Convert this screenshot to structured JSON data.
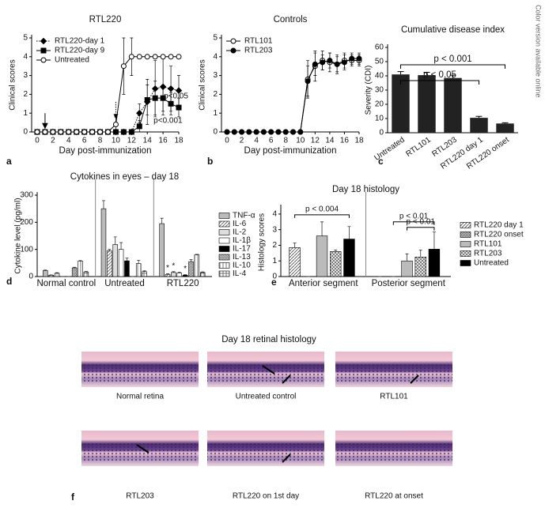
{
  "side_note": "Color version available online",
  "chart_data": [
    {
      "type": "line",
      "panel": "a",
      "title": "RTL220",
      "x_label": "Day post-immunization",
      "y_label": "Clinical scores",
      "x": [
        0,
        1,
        2,
        3,
        4,
        5,
        6,
        7,
        8,
        9,
        10,
        11,
        12,
        13,
        14,
        15,
        16,
        17,
        18
      ],
      "xlim": [
        0,
        18
      ],
      "xticks": [
        0,
        2,
        4,
        6,
        8,
        10,
        12,
        14,
        16,
        18
      ],
      "ylim": [
        0,
        5
      ],
      "yticks": [
        0,
        1,
        2,
        3,
        4,
        5
      ],
      "legend": "upper left",
      "series": [
        {
          "name": "RTL220-day 1",
          "color": "#000000",
          "marker": "diamond",
          "line": "dotted",
          "values": [
            0,
            0,
            0,
            0,
            0,
            0,
            0,
            0,
            0,
            0,
            0,
            0,
            0,
            1.0,
            1.6,
            2.3,
            2.4,
            2.3,
            2.2
          ],
          "errors": [
            null,
            null,
            null,
            null,
            null,
            null,
            null,
            null,
            null,
            null,
            null,
            null,
            null,
            0.5,
            1.2,
            1.5,
            1.5,
            1.2,
            0.8
          ]
        },
        {
          "name": "RTL220-day 9",
          "color": "#000000",
          "marker": "square",
          "line": "solid",
          "values": [
            0,
            0,
            0,
            0,
            0,
            0,
            0,
            0,
            0,
            0,
            0,
            0,
            0,
            0.3,
            1.7,
            1.8,
            1.8,
            1.5,
            1.3
          ],
          "errors": [
            null,
            null,
            null,
            null,
            null,
            null,
            null,
            null,
            null,
            null,
            null,
            null,
            null,
            0.3,
            0.8,
            0.9,
            0.7,
            0.6,
            0.5
          ]
        },
        {
          "name": "Untreated",
          "color": "#000000",
          "marker": "open-circle",
          "line": "solid",
          "values": [
            0,
            0,
            0,
            0,
            0,
            0,
            0,
            0,
            0,
            0,
            0.4,
            3.5,
            4,
            4,
            4,
            4,
            4,
            4,
            4
          ],
          "errors": [
            null,
            null,
            null,
            null,
            null,
            null,
            null,
            null,
            null,
            null,
            0.4,
            1.5,
            1.0,
            null,
            null,
            null,
            null,
            null,
            null
          ]
        }
      ],
      "annotations": [
        "p<0.05",
        "p<0.001"
      ]
    },
    {
      "type": "line",
      "panel": "b",
      "title": "Controls",
      "x_label": "Day post-immunization",
      "y_label": "Clinical scores",
      "x": [
        0,
        1,
        2,
        3,
        4,
        5,
        6,
        7,
        8,
        9,
        10,
        11,
        12,
        13,
        14,
        15,
        16,
        17,
        18
      ],
      "xlim": [
        0,
        18
      ],
      "xticks": [
        0,
        2,
        4,
        6,
        8,
        10,
        12,
        14,
        16,
        18
      ],
      "ylim": [
        0,
        5
      ],
      "yticks": [
        0,
        1,
        2,
        3,
        4,
        5
      ],
      "legend": "upper left",
      "series": [
        {
          "name": "RTL101",
          "color": "#000000",
          "marker": "open-circle",
          "line": "solid",
          "values": [
            0,
            0,
            0,
            0,
            0,
            0,
            0,
            0,
            0,
            0,
            0,
            2.8,
            3.5,
            3.8,
            3.7,
            3.6,
            3.8,
            3.8,
            3.8
          ],
          "errors": [
            null,
            null,
            null,
            null,
            null,
            null,
            null,
            null,
            null,
            null,
            null,
            1.0,
            0.8,
            0.5,
            0.5,
            0.4,
            0.4,
            0.3,
            0.3
          ]
        },
        {
          "name": "RTL203",
          "color": "#000000",
          "marker": "circle",
          "line": "solid",
          "values": [
            0,
            0,
            0,
            0,
            0,
            0,
            0,
            0,
            0,
            0,
            0,
            2.7,
            3.6,
            3.7,
            3.8,
            3.6,
            3.7,
            3.9,
            3.9
          ],
          "errors": [
            null,
            null,
            null,
            null,
            null,
            null,
            null,
            null,
            null,
            null,
            null,
            0.8,
            0.6,
            0.4,
            0.4,
            0.5,
            0.4,
            0.3,
            0.3
          ]
        }
      ]
    },
    {
      "type": "bar",
      "panel": "c",
      "title": "Cumulative disease index",
      "y_label": "Severity (CDI)",
      "categories": [
        "Untreated",
        "RTL101",
        "RTL203",
        "RTL220 day 1",
        "RTL220 onset"
      ],
      "values": [
        41,
        40.5,
        38.5,
        10.5,
        6.5
      ],
      "errors": [
        2,
        2,
        2,
        1,
        0.5
      ],
      "color": "#222222",
      "ylim": [
        0,
        60
      ],
      "yticks": [
        0,
        10,
        20,
        30,
        40,
        50,
        60
      ],
      "brackets": [
        {
          "text": "p < 0.001",
          "from": "Untreated",
          "to": "RTL220 onset"
        },
        {
          "text": "p < 0.05",
          "from": "Untreated",
          "to": "RTL220 day 1"
        }
      ]
    },
    {
      "type": "grouped_bar",
      "panel": "d",
      "title": "Cytokines in eyes – day 18",
      "y_label": "Cytokine level (pg/ml)",
      "categories": [
        "Normal control",
        "Untreated",
        "RTL220"
      ],
      "ylim": [
        0,
        300
      ],
      "yticks": [
        0,
        100,
        200,
        300
      ],
      "legend": "right",
      "series": [
        {
          "name": "TNF-α",
          "color": "#bbbbbb",
          "pattern": "solid",
          "values": [
            22,
            250,
            195
          ],
          "errors": [
            2,
            30,
            20
          ]
        },
        {
          "name": "IL-6",
          "color": "#555555",
          "pattern": "hatch",
          "values": [
            5,
            95,
            8
          ],
          "errors": [
            1,
            5,
            2
          ]
        },
        {
          "name": "IL-2",
          "color": "#dddddd",
          "pattern": "solid",
          "values": [
            12,
            118,
            15
          ],
          "errors": [
            2,
            28,
            3
          ]
        },
        {
          "name": "IL-1β",
          "color": "#ffffff",
          "pattern": "solid",
          "values": [
            0,
            100,
            13
          ],
          "errors": [
            0,
            25,
            3
          ]
        },
        {
          "name": "IL-17",
          "color": "#000000",
          "pattern": "solid",
          "values": [
            0,
            58,
            5
          ],
          "errors": [
            0,
            10,
            2
          ]
        },
        {
          "name": "IL-13",
          "color": "#555555",
          "pattern": "hatch-dense",
          "values": [
            32,
            0,
            55
          ],
          "errors": [
            2,
            0,
            8
          ]
        },
        {
          "name": "IL-10",
          "color": "#555555",
          "pattern": "vlines",
          "values": [
            57,
            48,
            80
          ],
          "errors": [
            2,
            12,
            2
          ]
        },
        {
          "name": "IL-4",
          "color": "#555555",
          "pattern": "grid",
          "values": [
            17,
            18,
            15
          ],
          "errors": [
            2,
            3,
            2
          ]
        }
      ],
      "annotations": [
        "*",
        "*",
        "*"
      ]
    },
    {
      "type": "grouped_bar",
      "panel": "e",
      "title": "Day 18 histology",
      "y_label": "Histology scores",
      "categories": [
        "Anterior segment",
        "Posterior segment"
      ],
      "ylim": [
        0,
        4.4
      ],
      "yticks": [
        0,
        1,
        2,
        3,
        4
      ],
      "legend": "right",
      "series": [
        {
          "name": "RTL220 day 1",
          "color": "#444444",
          "pattern": "hatch",
          "values": [
            1.85,
            0
          ],
          "errors": [
            0.3,
            0
          ]
        },
        {
          "name": "RTL220 onset",
          "color": "#444444",
          "pattern": "hatch-dense",
          "values": [
            0,
            0
          ],
          "errors": [
            0,
            0
          ]
        },
        {
          "name": "RTL101",
          "color": "#bbbbbb",
          "pattern": "solid",
          "values": [
            2.6,
            1.0
          ],
          "errors": [
            0.9,
            0.45
          ]
        },
        {
          "name": "RTL203",
          "color": "#666666",
          "pattern": "cross",
          "values": [
            1.6,
            1.25
          ],
          "errors": [
            0.1,
            0.45
          ]
        },
        {
          "name": "Untreated",
          "color": "#000000",
          "pattern": "solid",
          "values": [
            2.4,
            1.75
          ],
          "errors": [
            0.8,
            1.1
          ]
        }
      ],
      "brackets": [
        {
          "text": "p < 0.004",
          "group": "Anterior segment",
          "from": "RTL220 day 1",
          "to": "Untreated"
        },
        {
          "text": "p < 0.01",
          "group": "Posterior segment",
          "from": "RTL220 onset",
          "to": "Untreated"
        },
        {
          "text": "p < 0.01",
          "group": "Posterior segment",
          "from": "RTL101",
          "to": "Untreated"
        }
      ]
    }
  ],
  "histology": {
    "panel": "f",
    "title": "Day 18 retinal histology",
    "captions": [
      "Normal retina",
      "Untreated control",
      "RTL101",
      "RTL203",
      "RTL220 on 1st day",
      "RTL220 at onset"
    ]
  }
}
